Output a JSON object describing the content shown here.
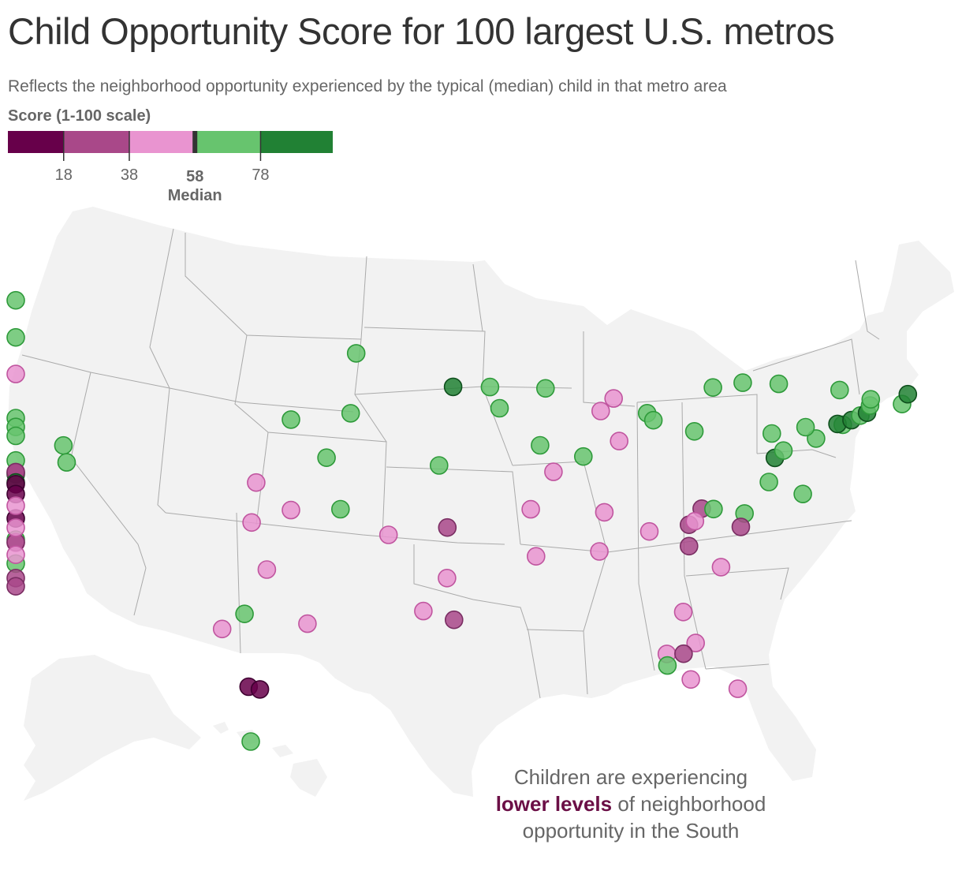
{
  "title": "Child Opportunity Score for 100 largest U.S. metros",
  "subtitle": "Reflects the neighborhood opportunity experienced by the typical (median) child in that metro area",
  "legend": {
    "title": "Score (1-100 scale)",
    "domain": [
      1,
      100
    ],
    "breaks": [
      "18",
      "38",
      "58",
      "78"
    ],
    "median_value": "58",
    "median_label": "Median",
    "colors": [
      "#67004a",
      "#a94889",
      "#e994d0",
      "#67c46e",
      "#218134"
    ]
  },
  "callout": {
    "before": "Children are experiencing",
    "highlight": "lower levels",
    "after": "of neighborhood opportunity in the South"
  },
  "category_colors": {
    "very_low": {
      "fill": "#67004a",
      "stroke": "#3e0030"
    },
    "low": {
      "fill": "#a94889",
      "stroke": "#7a2e63"
    },
    "moderate": {
      "fill": "#e994d0",
      "stroke": "#c0559f"
    },
    "high": {
      "fill": "#67c46e",
      "stroke": "#2e9a3a"
    },
    "very_high": {
      "fill": "#218134",
      "stroke": "#0f4f1d"
    }
  },
  "metros": [
    {
      "lon": -122.3,
      "lat": 47.6,
      "cat": "high"
    },
    {
      "lon": -122.7,
      "lat": 45.5,
      "cat": "high"
    },
    {
      "lon": -116.2,
      "lat": 43.6,
      "cat": "moderate"
    },
    {
      "lon": -111.9,
      "lat": 41.2,
      "cat": "high"
    },
    {
      "lon": -111.9,
      "lat": 40.7,
      "cat": "high"
    },
    {
      "lon": -111.7,
      "lat": 40.2,
      "cat": "high"
    },
    {
      "lon": -121.5,
      "lat": 38.6,
      "cat": "high"
    },
    {
      "lon": -122.4,
      "lat": 37.8,
      "cat": "very_high"
    },
    {
      "lon": -122.0,
      "lat": 37.9,
      "cat": "low"
    },
    {
      "lon": -121.3,
      "lat": 37.95,
      "cat": "low"
    },
    {
      "lon": -121.9,
      "lat": 37.35,
      "cat": "very_high"
    },
    {
      "lon": -120.0,
      "lat": 37.3,
      "cat": "very_low"
    },
    {
      "lon": -119.8,
      "lat": 36.75,
      "cat": "very_low"
    },
    {
      "lon": -119.0,
      "lat": 35.4,
      "cat": "very_low"
    },
    {
      "lon": -119.2,
      "lat": 34.2,
      "cat": "high"
    },
    {
      "lon": -118.2,
      "lat": 34.05,
      "cat": "moderate"
    },
    {
      "lon": -117.3,
      "lat": 34.1,
      "cat": "low"
    },
    {
      "lon": -117.1,
      "lat": 32.9,
      "cat": "high"
    },
    {
      "lon": -115.1,
      "lat": 36.2,
      "cat": "moderate"
    },
    {
      "lon": -112.0,
      "lat": 33.5,
      "cat": "moderate"
    },
    {
      "lon": -110.9,
      "lat": 32.2,
      "cat": "low"
    },
    {
      "lon": -106.6,
      "lat": 35.1,
      "cat": "moderate"
    },
    {
      "lon": -106.5,
      "lat": 31.8,
      "cat": "low"
    },
    {
      "lon": -105.0,
      "lat": 39.75,
      "cat": "high"
    },
    {
      "lon": -104.8,
      "lat": 38.8,
      "cat": "high"
    },
    {
      "lon": -97.35,
      "lat": 37.7,
      "cat": "moderate"
    },
    {
      "lon": -97.5,
      "lat": 35.45,
      "cat": "moderate"
    },
    {
      "lon": -96.0,
      "lat": 36.15,
      "cat": "moderate"
    },
    {
      "lon": -96.9,
      "lat": 32.8,
      "cat": "moderate"
    },
    {
      "lon": -97.7,
      "lat": 30.3,
      "cat": "high"
    },
    {
      "lon": -98.5,
      "lat": 29.45,
      "cat": "moderate"
    },
    {
      "lon": -95.4,
      "lat": 29.75,
      "cat": "moderate"
    },
    {
      "lon": -97.5,
      "lat": 26.2,
      "cat": "very_low"
    },
    {
      "lon": -97.1,
      "lat": 26.05,
      "cat": "very_low"
    },
    {
      "lon": -93.3,
      "lat": 44.98,
      "cat": "high"
    },
    {
      "lon": -93.6,
      "lat": 41.6,
      "cat": "high"
    },
    {
      "lon": -96.0,
      "lat": 41.25,
      "cat": "high"
    },
    {
      "lon": -94.6,
      "lat": 39.1,
      "cat": "high"
    },
    {
      "lon": -94.1,
      "lat": 36.2,
      "cat": "high"
    },
    {
      "lon": -92.3,
      "lat": 34.75,
      "cat": "moderate"
    },
    {
      "lon": -90.05,
      "lat": 35.15,
      "cat": "low"
    },
    {
      "lon": -90.2,
      "lat": 32.3,
      "cat": "moderate"
    },
    {
      "lon": -91.15,
      "lat": 30.45,
      "cat": "moderate"
    },
    {
      "lon": -90.05,
      "lat": 29.95,
      "cat": "low"
    },
    {
      "lon": -90.2,
      "lat": 38.65,
      "cat": "high"
    },
    {
      "lon": -89.4,
      "lat": 43.07,
      "cat": "very_high"
    },
    {
      "lon": -87.9,
      "lat": 43.05,
      "cat": "high"
    },
    {
      "lon": -87.6,
      "lat": 41.85,
      "cat": "high"
    },
    {
      "lon": -85.65,
      "lat": 42.95,
      "cat": "high"
    },
    {
      "lon": -86.15,
      "lat": 39.75,
      "cat": "high"
    },
    {
      "lon": -85.75,
      "lat": 38.25,
      "cat": "moderate"
    },
    {
      "lon": -84.5,
      "lat": 39.1,
      "cat": "high"
    },
    {
      "lon": -83.0,
      "lat": 39.95,
      "cat": "moderate"
    },
    {
      "lon": -82.95,
      "lat": 42.35,
      "cat": "moderate"
    },
    {
      "lon": -83.55,
      "lat": 41.65,
      "cat": "moderate"
    },
    {
      "lon": -81.7,
      "lat": 41.5,
      "cat": "high"
    },
    {
      "lon": -81.5,
      "lat": 41.1,
      "cat": "high"
    },
    {
      "lon": -86.8,
      "lat": 36.15,
      "cat": "moderate"
    },
    {
      "lon": -84.0,
      "lat": 35.95,
      "cat": "moderate"
    },
    {
      "lon": -86.8,
      "lat": 33.5,
      "cat": "moderate"
    },
    {
      "lon": -84.4,
      "lat": 33.75,
      "cat": "moderate"
    },
    {
      "lon": -82.4,
      "lat": 34.85,
      "cat": "moderate"
    },
    {
      "lon": -81.0,
      "lat": 34.0,
      "cat": "low"
    },
    {
      "lon": -79.95,
      "lat": 32.8,
      "cat": "moderate"
    },
    {
      "lon": -80.85,
      "lat": 35.2,
      "cat": "low"
    },
    {
      "lon": -80.25,
      "lat": 36.1,
      "cat": "low"
    },
    {
      "lon": -79.8,
      "lat": 36.07,
      "cat": "high"
    },
    {
      "lon": -78.65,
      "lat": 35.8,
      "cat": "high"
    },
    {
      "lon": -78.9,
      "lat": 35.05,
      "cat": "low"
    },
    {
      "lon": -80.6,
      "lat": 35.4,
      "cat": "moderate"
    },
    {
      "lon": -81.65,
      "lat": 30.3,
      "cat": "moderate"
    },
    {
      "lon": -81.4,
      "lat": 28.55,
      "cat": "moderate"
    },
    {
      "lon": -82.5,
      "lat": 27.95,
      "cat": "moderate"
    },
    {
      "lon": -81.9,
      "lat": 27.95,
      "cat": "low"
    },
    {
      "lon": -82.55,
      "lat": 27.3,
      "cat": "high"
    },
    {
      "lon": -81.8,
      "lat": 26.5,
      "cat": "moderate"
    },
    {
      "lon": -80.2,
      "lat": 25.95,
      "cat": "moderate"
    },
    {
      "lon": -79.95,
      "lat": 40.45,
      "cat": "high"
    },
    {
      "lon": -77.0,
      "lat": 38.9,
      "cat": "very_high"
    },
    {
      "lon": -76.6,
      "lat": 39.3,
      "cat": "high"
    },
    {
      "lon": -77.45,
      "lat": 37.55,
      "cat": "high"
    },
    {
      "lon": -76.25,
      "lat": 36.85,
      "cat": "high"
    },
    {
      "lon": -75.2,
      "lat": 39.95,
      "cat": "high"
    },
    {
      "lon": -75.5,
      "lat": 40.6,
      "cat": "high"
    },
    {
      "lon": -74.0,
      "lat": 40.7,
      "cat": "high"
    },
    {
      "lon": -74.2,
      "lat": 40.75,
      "cat": "very_high"
    },
    {
      "lon": -73.6,
      "lat": 40.95,
      "cat": "very_high"
    },
    {
      "lon": -73.2,
      "lat": 41.2,
      "cat": "high"
    },
    {
      "lon": -72.9,
      "lat": 41.35,
      "cat": "very_high"
    },
    {
      "lon": -72.7,
      "lat": 41.75,
      "cat": "high"
    },
    {
      "lon": -71.4,
      "lat": 41.8,
      "cat": "high"
    },
    {
      "lon": -71.05,
      "lat": 42.35,
      "cat": "very_high"
    },
    {
      "lon": -72.6,
      "lat": 42.1,
      "cat": "high"
    },
    {
      "lon": -73.75,
      "lat": 42.65,
      "cat": "high"
    },
    {
      "lon": -76.15,
      "lat": 43.05,
      "cat": "high"
    },
    {
      "lon": -77.6,
      "lat": 43.15,
      "cat": "high"
    },
    {
      "lon": -78.85,
      "lat": 42.9,
      "cat": "high"
    },
    {
      "lon": -76.9,
      "lat": 40.27,
      "cat": "high"
    },
    {
      "lon": -157.9,
      "lat": 21.3,
      "cat": "high"
    }
  ]
}
